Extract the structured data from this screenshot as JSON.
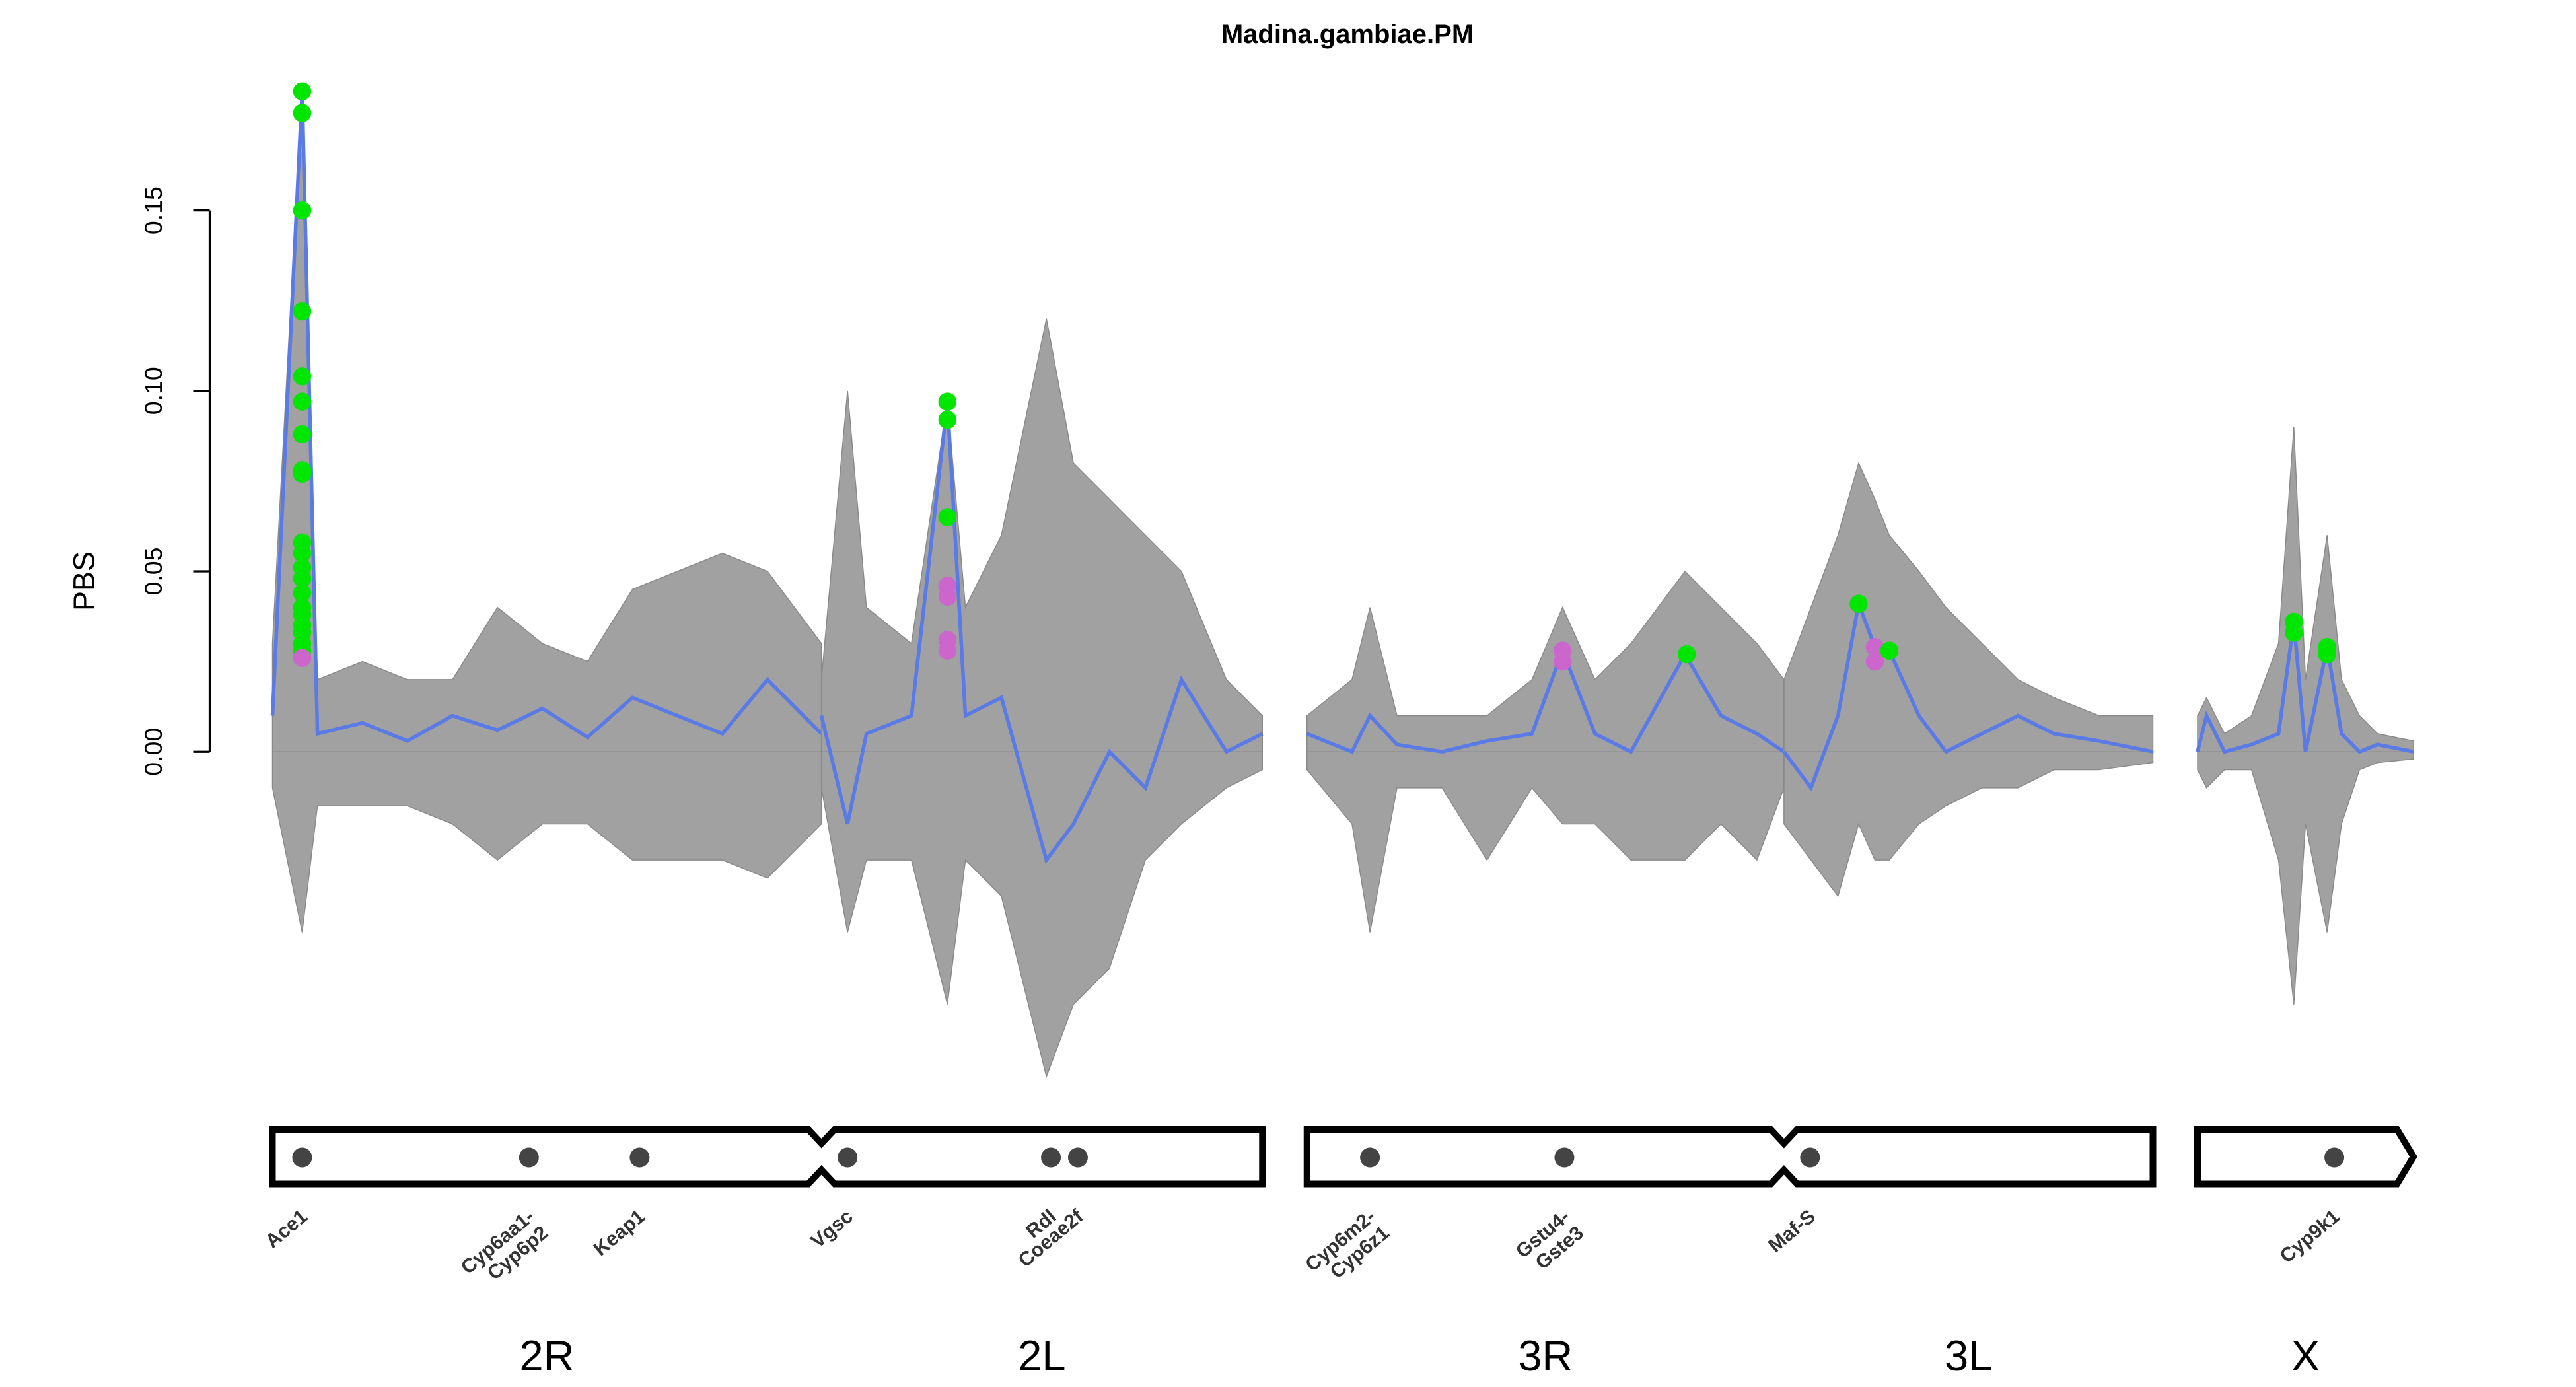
{
  "chart_data": {
    "type": "genome-scan",
    "title": "Madina.gambiae.PM",
    "y_label": "PBS",
    "ylim": [
      -0.09,
      0.19
    ],
    "yticks": [
      {
        "value": 0,
        "label": "0.00"
      },
      0.05,
      {
        "value": 0.1,
        "label": "0.10"
      },
      0.15
    ],
    "line_color": "#5a7ae6",
    "band_color": "#8a8a8a",
    "chromosomes": [
      {
        "arms": [
          {
            "name": "2R",
            "length": 61,
            "x": [
              0,
              3.3,
              5,
              10,
              15,
              20,
              25,
              30,
              35,
              40,
              45,
              50,
              55,
              61
            ],
            "values": [
              0.01,
              0.183,
              0.005,
              0.008,
              0.003,
              0.01,
              0.006,
              0.012,
              0.004,
              0.015,
              0.01,
              0.005,
              0.02,
              0.005
            ],
            "upper": [
              0.03,
              0.183,
              0.02,
              0.025,
              0.02,
              0.02,
              0.04,
              0.03,
              0.025,
              0.045,
              0.05,
              0.055,
              0.05,
              0.03
            ],
            "lower": [
              -0.01,
              -0.05,
              -0.015,
              -0.015,
              -0.015,
              -0.02,
              -0.03,
              -0.02,
              -0.02,
              -0.03,
              -0.03,
              -0.03,
              -0.035,
              -0.02
            ]
          },
          {
            "name": "2L",
            "length": 49,
            "x": [
              0,
              2.9,
              5,
              10,
              14,
              16,
              20,
              25,
              28,
              32,
              36,
              40,
              45,
              49
            ],
            "values": [
              0.01,
              -0.02,
              0.005,
              0.01,
              0.097,
              0.01,
              0.015,
              -0.03,
              -0.02,
              0.0,
              -0.01,
              0.02,
              0.0,
              0.005
            ],
            "upper": [
              0.02,
              0.1,
              0.04,
              0.03,
              0.097,
              0.04,
              0.06,
              0.12,
              0.08,
              0.07,
              0.06,
              0.05,
              0.02,
              0.01
            ],
            "lower": [
              -0.01,
              -0.05,
              -0.03,
              -0.03,
              -0.07,
              -0.03,
              -0.04,
              -0.09,
              -0.07,
              -0.06,
              -0.03,
              -0.02,
              -0.01,
              -0.005
            ]
          }
        ]
      },
      {
        "arms": [
          {
            "name": "3R",
            "length": 53,
            "x": [
              0,
              5,
              7,
              10,
              15,
              20,
              25,
              28.4,
              32,
              36,
              42,
              46,
              50,
              53
            ],
            "values": [
              0.005,
              0.0,
              0.01,
              0.002,
              0.0,
              0.003,
              0.005,
              0.028,
              0.005,
              0.0,
              0.027,
              0.01,
              0.005,
              0.0
            ],
            "upper": [
              0.01,
              0.02,
              0.04,
              0.01,
              0.01,
              0.01,
              0.02,
              0.04,
              0.02,
              0.03,
              0.05,
              0.04,
              0.03,
              0.02
            ],
            "lower": [
              -0.005,
              -0.02,
              -0.05,
              -0.01,
              -0.01,
              -0.03,
              -0.01,
              -0.02,
              -0.02,
              -0.03,
              -0.03,
              -0.02,
              -0.03,
              -0.01
            ]
          },
          {
            "name": "3L",
            "length": 41,
            "x": [
              0,
              3,
              6,
              8.3,
              10.1,
              11.7,
              15,
              18,
              22,
              26,
              30,
              35,
              41
            ],
            "values": [
              0.0,
              -0.01,
              0.01,
              0.041,
              0.029,
              0.028,
              0.01,
              0.0,
              0.005,
              0.01,
              0.005,
              0.003,
              0.0
            ],
            "upper": [
              0.02,
              0.04,
              0.06,
              0.08,
              0.07,
              0.06,
              0.05,
              0.04,
              0.03,
              0.02,
              0.015,
              0.01,
              0.01
            ],
            "lower": [
              -0.02,
              -0.03,
              -0.04,
              -0.02,
              -0.03,
              -0.03,
              -0.02,
              -0.015,
              -0.01,
              -0.01,
              -0.005,
              -0.005,
              -0.003
            ]
          }
        ]
      },
      {
        "arms": [
          {
            "name": "X",
            "length": 24,
            "x": [
              0,
              1,
              3,
              6,
              9,
              10.7,
              12,
              14.4,
              16,
              18,
              20,
              24
            ],
            "values": [
              0.0,
              0.01,
              0.0,
              0.002,
              0.005,
              0.036,
              0.0,
              0.029,
              0.005,
              0.0,
              0.002,
              0.0
            ],
            "upper": [
              0.01,
              0.015,
              0.005,
              0.01,
              0.03,
              0.09,
              0.02,
              0.06,
              0.02,
              0.01,
              0.005,
              0.003
            ],
            "lower": [
              -0.005,
              -0.01,
              -0.005,
              -0.005,
              -0.03,
              -0.07,
              -0.02,
              -0.05,
              -0.02,
              -0.005,
              -0.003,
              -0.002
            ]
          }
        ]
      }
    ],
    "highlights": [
      {
        "color": "#00e600",
        "arm": "2R",
        "x": 3.3,
        "values": [
          0.183,
          0.177,
          0.15,
          0.122,
          0.104,
          0.097,
          0.088,
          0.078,
          0.077,
          0.058,
          0.055,
          0.051,
          0.048,
          0.044,
          0.04,
          0.038,
          0.035,
          0.033,
          0.03,
          0.028
        ]
      },
      {
        "color": "#cc66cc",
        "arm": "2R",
        "x": 3.3,
        "values": [
          0.026
        ]
      },
      {
        "color": "#00e600",
        "arm": "2L",
        "x": 14,
        "values": [
          0.097,
          0.092,
          0.065
        ]
      },
      {
        "color": "#cc66cc",
        "arm": "2L",
        "x": 14,
        "values": [
          0.046,
          0.043,
          0.031,
          0.028
        ]
      },
      {
        "color": "#cc66cc",
        "arm": "3R",
        "x": 28.4,
        "values": [
          0.028,
          0.025
        ]
      },
      {
        "color": "#00e600",
        "arm": "3R",
        "x": 42.2,
        "values": [
          0.027
        ]
      },
      {
        "color": "#00e600",
        "arm": "3L",
        "x": 8.3,
        "values": [
          0.041
        ]
      },
      {
        "color": "#cc66cc",
        "arm": "3L",
        "x": 10.1,
        "values": [
          0.029,
          0.025
        ]
      },
      {
        "color": "#00e600",
        "arm": "3L",
        "x": 11.7,
        "values": [
          0.028
        ]
      },
      {
        "color": "#00e600",
        "arm": "X",
        "x": 10.7,
        "values": [
          0.036,
          0.033
        ]
      },
      {
        "color": "#00e600",
        "arm": "X",
        "x": 14.4,
        "values": [
          0.029,
          0.027
        ]
      }
    ],
    "genes": [
      {
        "label": [
          "Ace1"
        ],
        "arm": "2R",
        "pos": 3.3
      },
      {
        "label": [
          "Cyp6aa1-",
          "Cyp6p2"
        ],
        "arm": "2R",
        "pos": 28.5
      },
      {
        "label": [
          "Keap1"
        ],
        "arm": "2R",
        "pos": 40.8
      },
      {
        "label": [
          "Vgsc"
        ],
        "arm": "2L",
        "pos": 2.9
      },
      {
        "label": [
          "Rdl"
        ],
        "arm": "2L",
        "pos": 25.5
      },
      {
        "label": [
          "Coeae2f"
        ],
        "arm": "2L",
        "pos": 28.5
      },
      {
        "label": [
          "Cyp6m2-",
          "Cyp6z1"
        ],
        "arm": "3R",
        "pos": 7
      },
      {
        "label": [
          "Gstu4-",
          "Gste3"
        ],
        "arm": "3R",
        "pos": 28.6
      },
      {
        "label": [
          "Maf-S"
        ],
        "arm": "3L",
        "pos": 2.9
      },
      {
        "label": [
          "Cyp9k1"
        ],
        "arm": "X",
        "pos": 15.2
      }
    ]
  }
}
